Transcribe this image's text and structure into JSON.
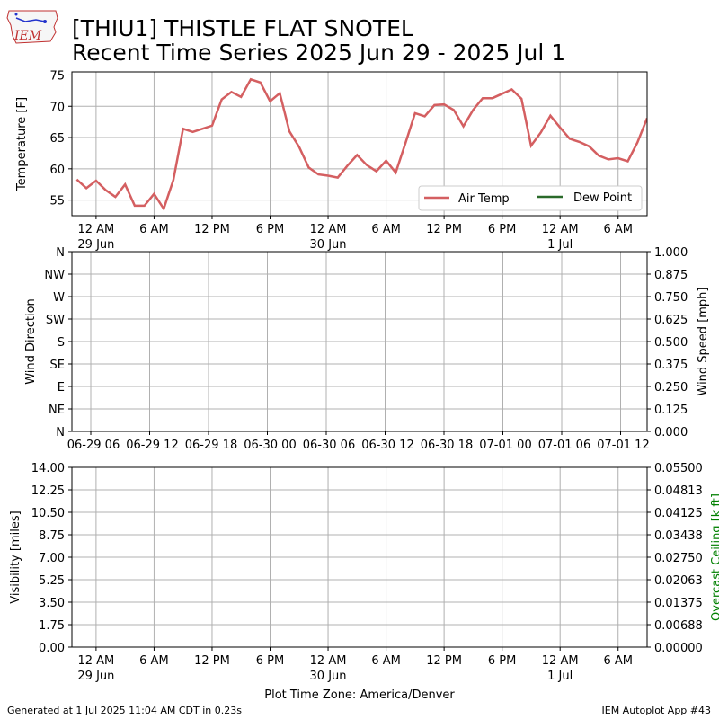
{
  "header": {
    "title_line1": "[THIU1] THISTLE FLAT SNOTEL",
    "title_line2": "Recent Time Series 2025 Jun 29 - 2025 Jul 1",
    "logo_text": "IEM"
  },
  "footer": {
    "generated": "Generated at 1 Jul 2025 11:04 AM CDT in 0.23s",
    "app": "IEM Autoplot App #43",
    "xlabel": "Plot Time Zone: America/Denver"
  },
  "colors": {
    "air_temp": "#d45f61",
    "dew_point": "#2a6a2a",
    "ceiling_label": "#008000",
    "grid": "#b0b0b0"
  },
  "chart_data": [
    {
      "type": "line",
      "ylabel": "Temperature [F]",
      "ylim": [
        52.5,
        75.5
      ],
      "yticks": [
        55,
        60,
        65,
        70,
        75
      ],
      "grid": true,
      "legend": {
        "placement": "lower-right",
        "entries": [
          "Air Temp",
          "Dew Point"
        ]
      },
      "x_tick_hours": [
        0,
        6,
        12,
        18,
        24,
        30,
        36,
        42,
        48,
        54
      ],
      "x_tick_labels": [
        [
          "12 AM",
          "29 Jun"
        ],
        [
          "6 AM",
          ""
        ],
        [
          "12 PM",
          ""
        ],
        [
          "6 PM",
          ""
        ],
        [
          "12 AM",
          "30 Jun"
        ],
        [
          "6 AM",
          ""
        ],
        [
          "12 PM",
          ""
        ],
        [
          "6 PM",
          ""
        ],
        [
          "12 AM",
          "1 Jul"
        ],
        [
          "6 AM",
          ""
        ]
      ],
      "series": [
        {
          "name": "Air Temp",
          "x_hours": [
            -2,
            -1,
            0,
            1,
            2,
            3,
            4,
            5,
            6,
            7,
            8,
            9,
            10,
            11,
            12,
            13,
            14,
            15,
            16,
            17,
            18,
            19,
            20,
            21,
            22,
            23,
            24,
            25,
            26,
            27,
            28,
            29,
            30,
            31,
            32,
            33,
            34,
            35,
            36,
            37,
            38,
            39,
            40,
            41,
            42,
            43,
            44,
            45,
            46,
            47,
            48,
            49,
            50,
            51,
            52,
            53,
            54,
            55,
            56,
            57
          ],
          "values": [
            58.3,
            56.9,
            58.1,
            56.6,
            55.5,
            57.5,
            54.1,
            54.1,
            56.0,
            53.6,
            58.2,
            66.4,
            65.9,
            66.4,
            66.9,
            71.1,
            72.3,
            71.5,
            74.3,
            73.8,
            70.8,
            72.1,
            66.0,
            63.5,
            60.2,
            59.1,
            58.9,
            58.6,
            60.5,
            62.2,
            60.6,
            59.6,
            61.3,
            59.4,
            64.1,
            68.9,
            68.4,
            70.2,
            70.3,
            69.4,
            66.8,
            69.4,
            71.3,
            71.3,
            72.0,
            72.7,
            71.2,
            63.7,
            65.8,
            68.5,
            66.6,
            64.8,
            64.3,
            63.6,
            62.1,
            61.5,
            61.7,
            61.2,
            64.2,
            68.1
          ]
        },
        {
          "name": "Dew Point",
          "x_hours": [],
          "values": []
        }
      ]
    },
    {
      "type": "line",
      "ylabel": "Wind Direction",
      "ylabel_right": "Wind Speed [mph]",
      "yticks_left": [
        "N",
        "NE",
        "E",
        "SE",
        "S",
        "SW",
        "W",
        "NW",
        "N"
      ],
      "yticks_right": [
        "0.000",
        "0.125",
        "0.250",
        "0.375",
        "0.500",
        "0.625",
        "0.750",
        "0.875",
        "1.000"
      ],
      "grid": true,
      "x_tick_labels": [
        "06-29 06",
        "06-29 12",
        "06-29 18",
        "06-30 00",
        "06-30 06",
        "06-30 12",
        "06-30 18",
        "07-01 00",
        "07-01 06",
        "07-01 12"
      ],
      "series": []
    },
    {
      "type": "line",
      "ylabel": "Visibility [miles]",
      "ylabel_right": "Overcast Ceiling [k ft]",
      "yticks_left": [
        "0.00",
        "1.75",
        "3.50",
        "5.25",
        "7.00",
        "8.75",
        "10.50",
        "12.25",
        "14.00"
      ],
      "yticks_right": [
        "0.00000",
        "0.00688",
        "0.01375",
        "0.02063",
        "0.02750",
        "0.03438",
        "0.04125",
        "0.04813",
        "0.05500"
      ],
      "grid": true,
      "x_tick_labels": [
        [
          "12 AM",
          "29 Jun"
        ],
        [
          "6 AM",
          ""
        ],
        [
          "12 PM",
          ""
        ],
        [
          "6 PM",
          ""
        ],
        [
          "12 AM",
          "30 Jun"
        ],
        [
          "6 AM",
          ""
        ],
        [
          "12 PM",
          ""
        ],
        [
          "6 PM",
          ""
        ],
        [
          "12 AM",
          "1 Jul"
        ],
        [
          "6 AM",
          ""
        ]
      ],
      "series": []
    }
  ]
}
